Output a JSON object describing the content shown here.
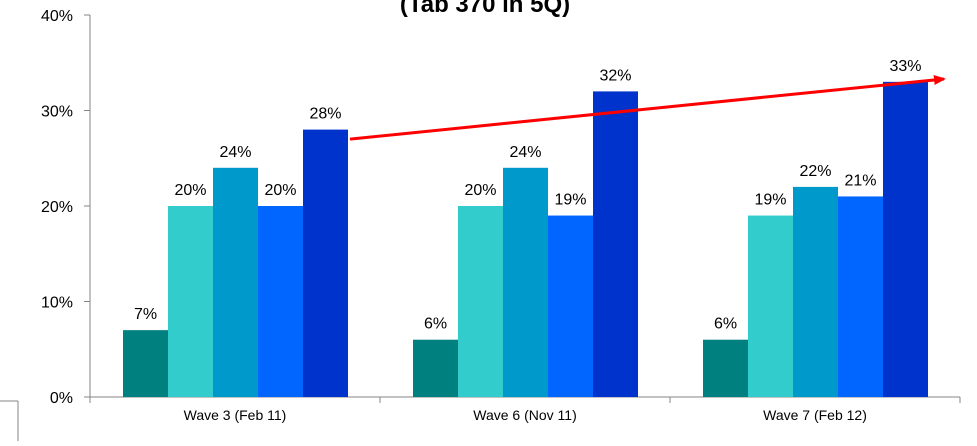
{
  "chart_data": {
    "type": "bar",
    "title": "",
    "xlabel": "",
    "ylabel": "",
    "categories": [
      "Wave 3 (Feb 11)",
      "Wave 6 (Nov 11)",
      "Wave 7 (Feb 12)"
    ],
    "series": [
      {
        "color": "#00807f",
        "values": [
          7,
          6,
          6
        ]
      },
      {
        "color": "#33cccc",
        "values": [
          20,
          20,
          19
        ]
      },
      {
        "color": "#0099cc",
        "values": [
          24,
          24,
          22
        ]
      },
      {
        "color": "#0066ff",
        "values": [
          20,
          19,
          21
        ]
      },
      {
        "color": "#0033cc",
        "values": [
          28,
          32,
          33
        ]
      }
    ],
    "data_labels": [
      [
        "7%",
        "20%",
        "24%",
        "20%",
        "28%"
      ],
      [
        "6%",
        "20%",
        "24%",
        "19%",
        "32%"
      ],
      [
        "6%",
        "19%",
        "22%",
        "21%",
        "33%"
      ]
    ],
    "ylim": [
      0,
      40
    ],
    "yticks": [
      0,
      10,
      20,
      30,
      40
    ],
    "ytick_labels": [
      "0%",
      "10%",
      "20%",
      "30%",
      "40%"
    ],
    "grid": false,
    "legend": "none",
    "trend_arrow": {
      "color": "#ff0000",
      "from": {
        "category": "Wave 3 (Feb 11)",
        "value": 27
      },
      "to": {
        "category": "Wave 7 (Feb 12)",
        "value": 33.3
      }
    },
    "partial_title_text": "(Tab 370 in 5Q)"
  }
}
